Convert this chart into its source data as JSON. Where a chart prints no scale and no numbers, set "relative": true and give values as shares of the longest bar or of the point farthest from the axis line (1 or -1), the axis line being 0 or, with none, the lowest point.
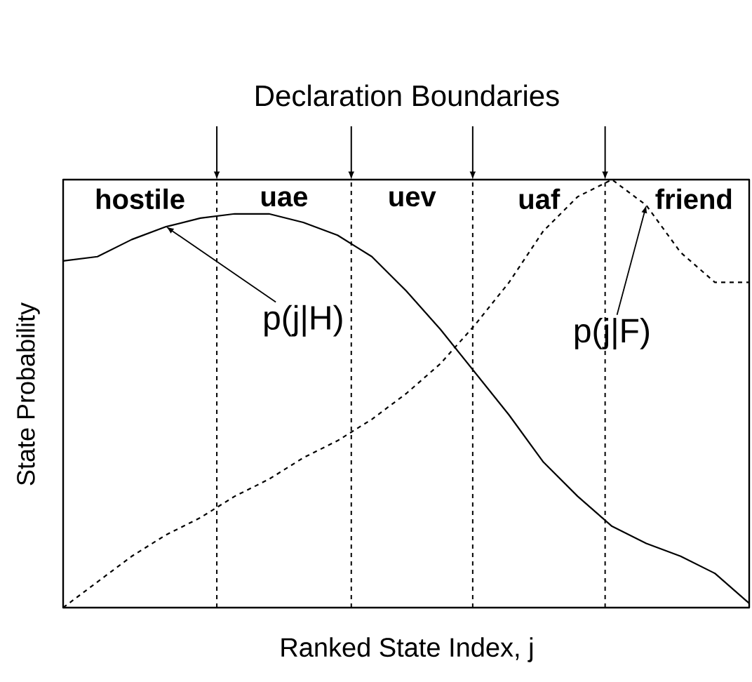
{
  "chart_data": {
    "type": "line",
    "title": "Declaration Boundaries",
    "xlabel": "Ranked State Index, j",
    "ylabel": "State Probability",
    "relative": true,
    "categories": [
      null,
      null,
      null,
      null,
      null,
      null,
      null,
      null,
      null,
      null,
      null,
      null,
      null,
      null,
      null,
      null,
      null,
      null,
      null,
      null,
      null
    ],
    "series": [
      {
        "color": "#000000",
        "line_style": "solid",
        "values": [
          0.81,
          0.82,
          0.86,
          0.89,
          0.91,
          0.92,
          0.92,
          0.9,
          0.87,
          0.82,
          0.74,
          0.65,
          0.55,
          0.45,
          0.34,
          0.26,
          0.19,
          0.15,
          0.12,
          0.08,
          0.01
        ]
      },
      {
        "color": "#000000",
        "line_style": "dashed",
        "values": [
          0,
          0.06,
          0.12,
          0.17,
          0.21,
          0.26,
          0.3,
          0.35,
          0.39,
          0.44,
          0.5,
          0.57,
          0.66,
          0.76,
          0.88,
          0.96,
          1,
          0.94,
          0.83,
          0.76,
          0.76
        ]
      }
    ],
    "annotations": [
      "p(j|H)",
      "p(j|F)",
      "hostile",
      "uae",
      "uev",
      "uaf",
      "friend"
    ]
  }
}
